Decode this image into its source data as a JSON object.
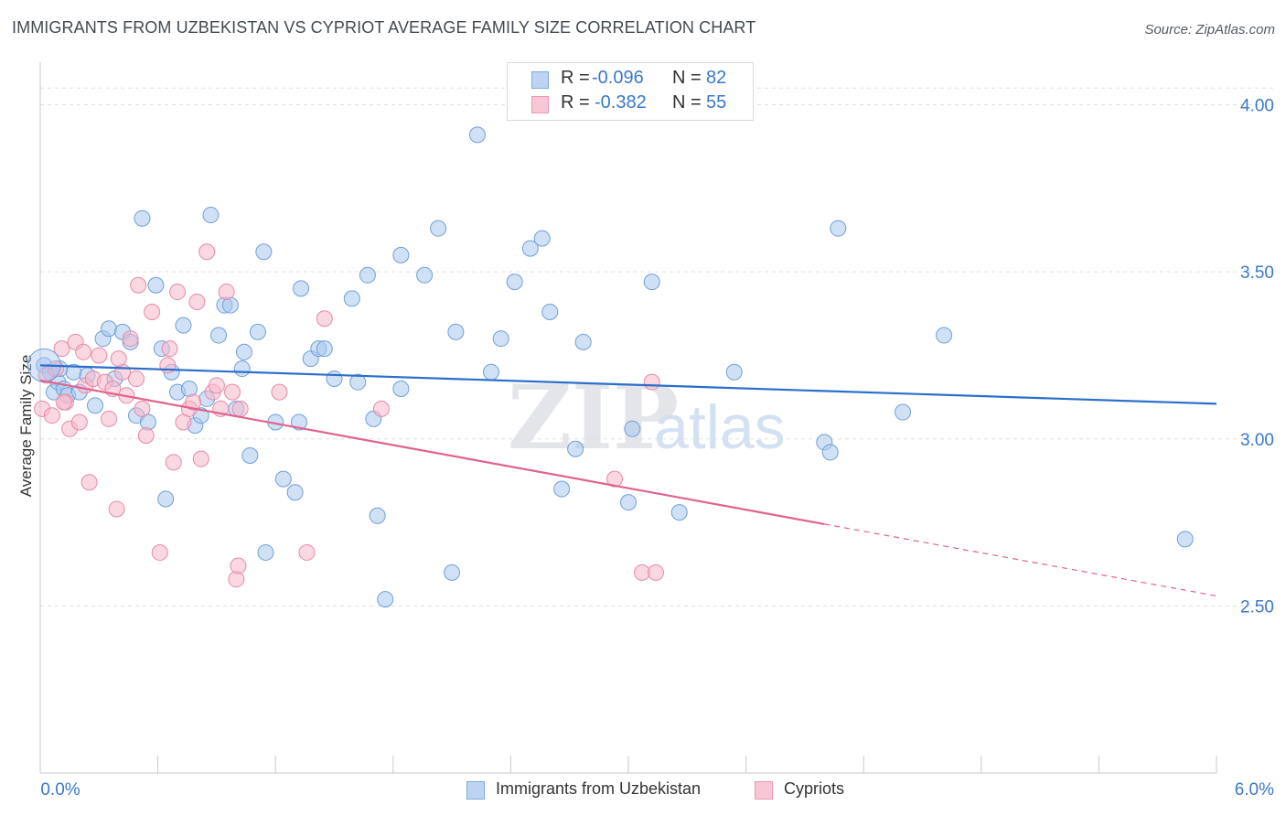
{
  "title": "IMMIGRANTS FROM UZBEKISTAN VS CYPRIOT AVERAGE FAMILY SIZE CORRELATION CHART",
  "source": "Source: ZipAtlas.com",
  "watermark": {
    "zip": "ZIP",
    "atlas": "atlas"
  },
  "colors": {
    "blue_fill": "#a9c8ef",
    "blue_stroke": "#6f9fd9",
    "blue_line": "#2b6fcb",
    "pink_fill": "#f5b8cb",
    "pink_stroke": "#e889a8",
    "pink_line": "#e0628f",
    "axis_label": "#3b78c9",
    "grid": "#dde0e4"
  },
  "stats": [
    {
      "r_label": "R =",
      "r_value": "-0.096",
      "n_label": "N =",
      "n_value": "82"
    },
    {
      "r_label": "R =",
      "r_value": "-0.382",
      "n_label": "N =",
      "n_value": "55"
    }
  ],
  "legend": [
    {
      "label": "Immigrants from Uzbekistan"
    },
    {
      "label": "Cypriots"
    }
  ],
  "chart_data": {
    "type": "scatter",
    "title": "IMMIGRANTS FROM UZBEKISTAN VS CYPRIOT AVERAGE FAMILY SIZE CORRELATION CHART",
    "xlabel": "",
    "ylabel": "Average Family Size",
    "xlim": [
      0.0,
      6.0
    ],
    "ylim": [
      2.0,
      4.1
    ],
    "x_tick_labels": [
      "0.0%",
      "6.0%"
    ],
    "y_ticks": [
      2.5,
      3.0,
      3.5,
      4.0
    ],
    "y_tick_labels": [
      "2.50",
      "3.00",
      "3.50",
      "4.00"
    ],
    "grid": "horizontal dashed",
    "legend_position": "bottom-center",
    "series": [
      {
        "name": "Immigrants from Uzbekistan",
        "trend": {
          "x": [
            0.0,
            6.0
          ],
          "y": [
            3.22,
            3.105
          ],
          "dashed_from": null
        },
        "points": [
          [
            0.02,
            3.22
          ],
          [
            0.05,
            3.2
          ],
          [
            0.07,
            3.14
          ],
          [
            0.09,
            3.17
          ],
          [
            0.12,
            3.15
          ],
          [
            0.14,
            3.13
          ],
          [
            0.17,
            3.2
          ],
          [
            0.2,
            3.14
          ],
          [
            0.24,
            3.19
          ],
          [
            0.28,
            3.1
          ],
          [
            0.32,
            3.3
          ],
          [
            0.35,
            3.33
          ],
          [
            0.38,
            3.18
          ],
          [
            0.42,
            3.32
          ],
          [
            0.46,
            3.29
          ],
          [
            0.49,
            3.07
          ],
          [
            0.52,
            3.66
          ],
          [
            0.55,
            3.05
          ],
          [
            0.59,
            3.46
          ],
          [
            0.62,
            3.27
          ],
          [
            0.64,
            2.82
          ],
          [
            0.67,
            3.2
          ],
          [
            0.7,
            3.14
          ],
          [
            0.73,
            3.34
          ],
          [
            0.76,
            3.15
          ],
          [
            0.79,
            3.04
          ],
          [
            0.82,
            3.07
          ],
          [
            0.85,
            3.12
          ],
          [
            0.87,
            3.67
          ],
          [
            0.91,
            3.31
          ],
          [
            0.94,
            3.4
          ],
          [
            0.97,
            3.4
          ],
          [
            1.0,
            3.09
          ],
          [
            1.03,
            3.21
          ],
          [
            1.04,
            3.26
          ],
          [
            1.07,
            2.95
          ],
          [
            1.11,
            3.32
          ],
          [
            1.14,
            3.56
          ],
          [
            1.15,
            2.66
          ],
          [
            1.2,
            3.05
          ],
          [
            1.24,
            2.88
          ],
          [
            1.3,
            2.84
          ],
          [
            1.32,
            3.05
          ],
          [
            1.33,
            3.45
          ],
          [
            1.38,
            3.24
          ],
          [
            1.42,
            3.27
          ],
          [
            1.45,
            3.27
          ],
          [
            1.5,
            3.18
          ],
          [
            1.59,
            3.42
          ],
          [
            1.62,
            3.17
          ],
          [
            1.67,
            3.49
          ],
          [
            1.7,
            3.06
          ],
          [
            1.72,
            2.77
          ],
          [
            1.76,
            2.52
          ],
          [
            1.84,
            3.15
          ],
          [
            1.84,
            3.55
          ],
          [
            1.96,
            3.49
          ],
          [
            2.03,
            3.63
          ],
          [
            2.1,
            2.6
          ],
          [
            2.12,
            3.32
          ],
          [
            2.23,
            3.91
          ],
          [
            2.3,
            3.2
          ],
          [
            2.35,
            3.3
          ],
          [
            2.42,
            3.47
          ],
          [
            2.5,
            3.57
          ],
          [
            2.56,
            3.6
          ],
          [
            2.6,
            3.38
          ],
          [
            2.66,
            2.85
          ],
          [
            2.73,
            2.97
          ],
          [
            2.77,
            3.29
          ],
          [
            3.0,
            2.81
          ],
          [
            3.02,
            3.03
          ],
          [
            3.12,
            3.47
          ],
          [
            3.26,
            2.78
          ],
          [
            3.54,
            3.2
          ],
          [
            4.0,
            2.99
          ],
          [
            4.03,
            2.96
          ],
          [
            4.07,
            3.63
          ],
          [
            4.4,
            3.08
          ],
          [
            4.61,
            3.31
          ],
          [
            5.84,
            2.7
          ],
          [
            0.1,
            3.21
          ]
        ]
      },
      {
        "name": "Cypriots",
        "trend": {
          "x": [
            0.0,
            6.0
          ],
          "y": [
            3.175,
            2.53
          ],
          "dashed_from": 4.0
        },
        "points": [
          [
            0.01,
            3.09
          ],
          [
            0.03,
            3.19
          ],
          [
            0.06,
            3.07
          ],
          [
            0.08,
            3.21
          ],
          [
            0.11,
            3.27
          ],
          [
            0.13,
            3.11
          ],
          [
            0.15,
            3.03
          ],
          [
            0.18,
            3.29
          ],
          [
            0.2,
            3.05
          ],
          [
            0.23,
            3.16
          ],
          [
            0.25,
            2.87
          ],
          [
            0.27,
            3.18
          ],
          [
            0.3,
            3.25
          ],
          [
            0.33,
            3.17
          ],
          [
            0.35,
            3.06
          ],
          [
            0.37,
            3.15
          ],
          [
            0.39,
            2.79
          ],
          [
            0.42,
            3.2
          ],
          [
            0.44,
            3.13
          ],
          [
            0.46,
            3.3
          ],
          [
            0.49,
            3.18
          ],
          [
            0.52,
            3.09
          ],
          [
            0.54,
            3.01
          ],
          [
            0.57,
            3.38
          ],
          [
            0.61,
            2.66
          ],
          [
            0.65,
            3.22
          ],
          [
            0.68,
            2.93
          ],
          [
            0.7,
            3.44
          ],
          [
            0.73,
            3.05
          ],
          [
            0.76,
            3.09
          ],
          [
            0.78,
            3.11
          ],
          [
            0.8,
            3.41
          ],
          [
            0.82,
            2.94
          ],
          [
            0.85,
            3.56
          ],
          [
            0.88,
            3.14
          ],
          [
            0.9,
            3.16
          ],
          [
            0.92,
            3.09
          ],
          [
            0.95,
            3.44
          ],
          [
            0.98,
            3.14
          ],
          [
            1.0,
            2.58
          ],
          [
            1.01,
            2.62
          ],
          [
            1.02,
            3.09
          ],
          [
            1.22,
            3.14
          ],
          [
            1.36,
            2.66
          ],
          [
            1.45,
            3.36
          ],
          [
            1.74,
            3.09
          ],
          [
            2.93,
            2.88
          ],
          [
            3.07,
            2.6
          ],
          [
            3.14,
            2.6
          ],
          [
            3.12,
            3.17
          ],
          [
            0.5,
            3.46
          ],
          [
            0.66,
            3.27
          ],
          [
            0.22,
            3.26
          ],
          [
            0.4,
            3.24
          ],
          [
            0.12,
            3.11
          ]
        ]
      }
    ]
  }
}
